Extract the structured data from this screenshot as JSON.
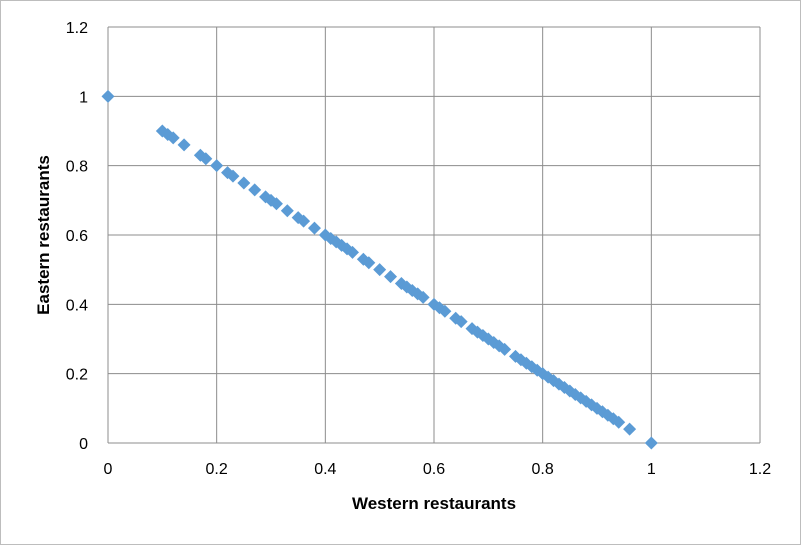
{
  "chart_data": {
    "type": "scatter",
    "title": "",
    "xlabel": "Western restaurants",
    "ylabel": "Eastern restaurants",
    "xlim": [
      0,
      1.2
    ],
    "ylim": [
      0,
      1.2
    ],
    "xticks": [
      "0",
      "0.2",
      "0.4",
      "0.6",
      "0.8",
      "1",
      "1.2"
    ],
    "yticks": [
      "0",
      "0.2",
      "0.4",
      "0.6",
      "0.8",
      "1",
      "1.2"
    ],
    "grid": true,
    "legend": "none",
    "marker": "diamond",
    "marker_color": "#5b9bd5",
    "series": [
      {
        "points": [
          [
            0,
            1
          ],
          [
            0.1,
            0.9
          ],
          [
            0.11,
            0.89
          ],
          [
            0.12,
            0.88
          ],
          [
            0.14,
            0.86
          ],
          [
            0.17,
            0.83
          ],
          [
            0.18,
            0.82
          ],
          [
            0.2,
            0.8
          ],
          [
            0.22,
            0.78
          ],
          [
            0.23,
            0.77
          ],
          [
            0.25,
            0.75
          ],
          [
            0.27,
            0.73
          ],
          [
            0.29,
            0.71
          ],
          [
            0.3,
            0.7
          ],
          [
            0.31,
            0.69
          ],
          [
            0.33,
            0.67
          ],
          [
            0.35,
            0.65
          ],
          [
            0.36,
            0.64
          ],
          [
            0.38,
            0.62
          ],
          [
            0.4,
            0.6
          ],
          [
            0.41,
            0.59
          ],
          [
            0.42,
            0.58
          ],
          [
            0.43,
            0.57
          ],
          [
            0.44,
            0.56
          ],
          [
            0.45,
            0.55
          ],
          [
            0.47,
            0.53
          ],
          [
            0.48,
            0.52
          ],
          [
            0.5,
            0.5
          ],
          [
            0.52,
            0.48
          ],
          [
            0.54,
            0.46
          ],
          [
            0.55,
            0.45
          ],
          [
            0.56,
            0.44
          ],
          [
            0.57,
            0.43
          ],
          [
            0.58,
            0.42
          ],
          [
            0.6,
            0.4
          ],
          [
            0.61,
            0.39
          ],
          [
            0.62,
            0.38
          ],
          [
            0.64,
            0.36
          ],
          [
            0.65,
            0.35
          ],
          [
            0.67,
            0.33
          ],
          [
            0.68,
            0.32
          ],
          [
            0.69,
            0.31
          ],
          [
            0.7,
            0.3
          ],
          [
            0.71,
            0.29
          ],
          [
            0.72,
            0.28
          ],
          [
            0.73,
            0.27
          ],
          [
            0.75,
            0.25
          ],
          [
            0.76,
            0.24
          ],
          [
            0.77,
            0.23
          ],
          [
            0.78,
            0.22
          ],
          [
            0.79,
            0.21
          ],
          [
            0.8,
            0.2
          ],
          [
            0.81,
            0.19
          ],
          [
            0.82,
            0.18
          ],
          [
            0.83,
            0.17
          ],
          [
            0.84,
            0.16
          ],
          [
            0.85,
            0.15
          ],
          [
            0.86,
            0.14
          ],
          [
            0.87,
            0.13
          ],
          [
            0.88,
            0.12
          ],
          [
            0.89,
            0.11
          ],
          [
            0.9,
            0.1
          ],
          [
            0.91,
            0.09
          ],
          [
            0.92,
            0.08
          ],
          [
            0.93,
            0.07
          ],
          [
            0.94,
            0.06
          ],
          [
            0.96,
            0.04
          ],
          [
            1,
            0
          ]
        ]
      }
    ]
  }
}
